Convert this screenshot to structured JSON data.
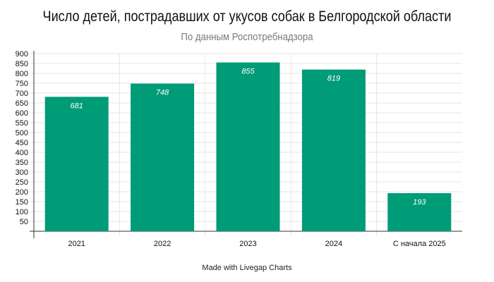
{
  "chart_data": {
    "type": "bar",
    "title": "Число детей, пострадавших от укусов собак в Белгородской области",
    "subtitle": "По данным Роспотребнадзора",
    "categories": [
      "2021",
      "2022",
      "2023",
      "2024",
      "С начала 2025"
    ],
    "values": [
      681,
      748,
      855,
      819,
      193
    ],
    "value_labels": [
      "681",
      "748",
      "855",
      "819",
      "193"
    ],
    "y_ticks": [
      50,
      100,
      150,
      200,
      250,
      300,
      350,
      400,
      450,
      500,
      550,
      600,
      650,
      700,
      750,
      800,
      850,
      900
    ],
    "ylim": [
      0,
      900
    ],
    "bar_color": "#009b77",
    "grid": true,
    "legend": "none"
  },
  "footer": "Made with Livegap Charts"
}
